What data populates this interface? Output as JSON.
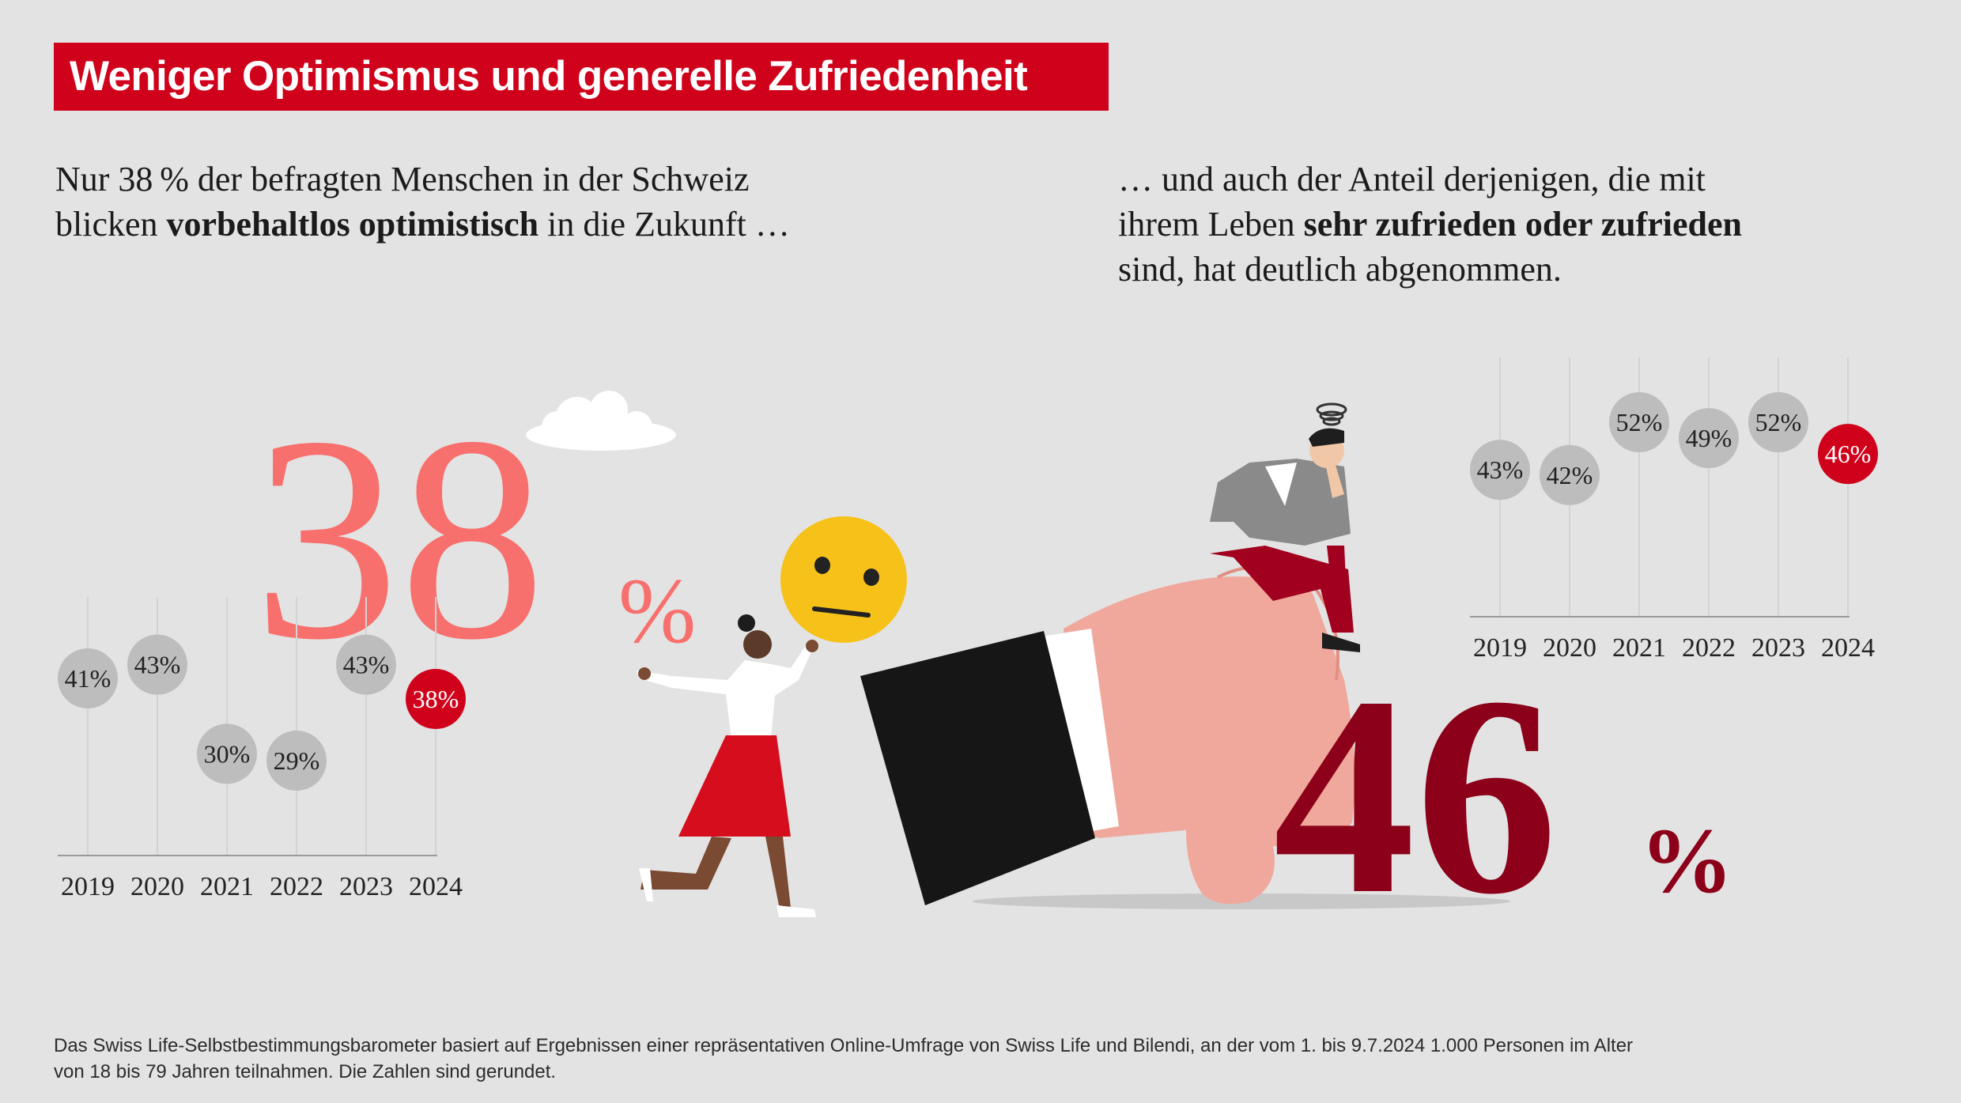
{
  "title": "Weniger Optimismus und generelle Zufriedenheit",
  "intro_left": {
    "line1": "Nur 38 % der befragten Menschen in der Schweiz",
    "line2_pre": "blicken ",
    "line2_bold": "vorbehaltlos optimistisch",
    "line2_post": " in die Zukunft …"
  },
  "intro_right": {
    "line1": "… und auch der Anteil derjenigen, die mit",
    "line2_pre": "ihrem Leben ",
    "line2_bold": "sehr zufrieden oder zufrieden",
    "line3": "sind, hat deutlich abgenommen."
  },
  "highlight_left": {
    "number": "38",
    "unit": "%"
  },
  "highlight_right": {
    "number": "46",
    "unit": "%"
  },
  "footnote": {
    "line1": "Das Swiss Life-Selbstbestimmungsbarometer basiert auf Ergebnissen einer repräsentativen Online-Umfrage von Swiss Life und Bilendi, an der vom 1. bis 9.7.2024 1.000 Personen im Alter",
    "line2": "von 18 bis 79 Jahren teilnahmen. Die Zahlen sind gerundet."
  },
  "colors": {
    "background": "#e3e3e3",
    "title_bg": "#d0021b",
    "bubble_gray": "#bdbdbd",
    "bubble_highlight": "#d0021b",
    "optimism_big": "#f7706d",
    "satisfaction_big": "#8c0019",
    "dark_red": "#8c0019"
  },
  "illustration": {
    "elements": [
      "cloud-icon",
      "neutral-face-emoji-icon",
      "walking-woman-illustration",
      "thumbs-down-hand-icon",
      "thinking-man-illustration",
      "dizzy-spiral-icon"
    ]
  },
  "chart_data": [
    {
      "type": "scatter",
      "name": "vorbehaltlos optimistisch",
      "categories": [
        "2019",
        "2020",
        "2021",
        "2022",
        "2023",
        "2024"
      ],
      "values": [
        41,
        43,
        30,
        29,
        43,
        38
      ],
      "labels": [
        "41%",
        "43%",
        "30%",
        "29%",
        "43%",
        "38%"
      ],
      "highlight_index": 5,
      "grid": "vertical",
      "ylim": [
        20,
        50
      ]
    },
    {
      "type": "scatter",
      "name": "sehr zufrieden oder zufrieden",
      "categories": [
        "2019",
        "2020",
        "2021",
        "2022",
        "2023",
        "2024"
      ],
      "values": [
        43,
        42,
        52,
        49,
        52,
        46
      ],
      "labels": [
        "43%",
        "42%",
        "52%",
        "49%",
        "52%",
        "46%"
      ],
      "highlight_index": 5,
      "grid": "vertical",
      "ylim": [
        20,
        55
      ]
    }
  ]
}
